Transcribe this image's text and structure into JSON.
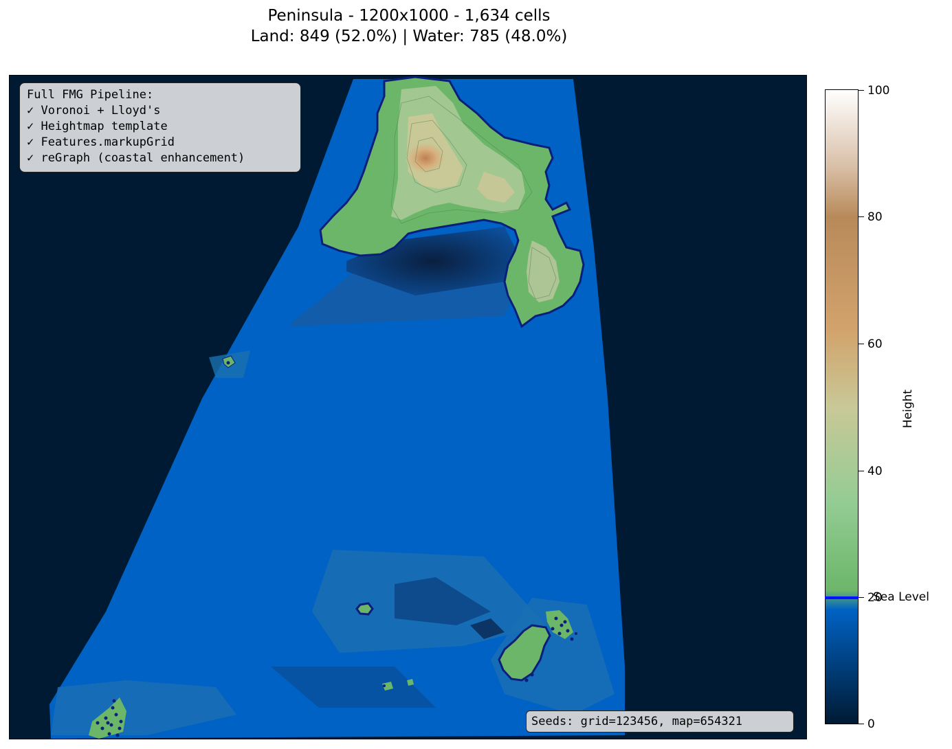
{
  "title": {
    "line1": "Peninsula - 1200x1000 - 1,634 cells",
    "line2": "Land: 849 (52.0%) | Water: 785 (48.0%)"
  },
  "info_box": {
    "lines": [
      "Full FMG Pipeline:",
      "✓ Voronoi + Lloyd's",
      "✓ Heightmap template",
      "✓ Features.markupGrid",
      "✓ reGraph (coastal enhancement)"
    ]
  },
  "seeds": "Seeds: grid=123456, map=654321",
  "colorbar": {
    "label": "Height",
    "ticks": [
      "0",
      "20",
      "40",
      "60",
      "80",
      "100"
    ],
    "sea_level_label": "Sea Level",
    "sea_level_value": 20,
    "colors": {
      "deep_water": "#001a33",
      "shallow_water": "#0062c4",
      "lowland": "#6cb66a",
      "midland": "#c9c897",
      "highland": "#b88a5a",
      "peak": "#ffffff",
      "coastline": "#0b1f7a"
    }
  },
  "map": {
    "regions": [
      "peninsula",
      "ocean",
      "islands"
    ]
  }
}
